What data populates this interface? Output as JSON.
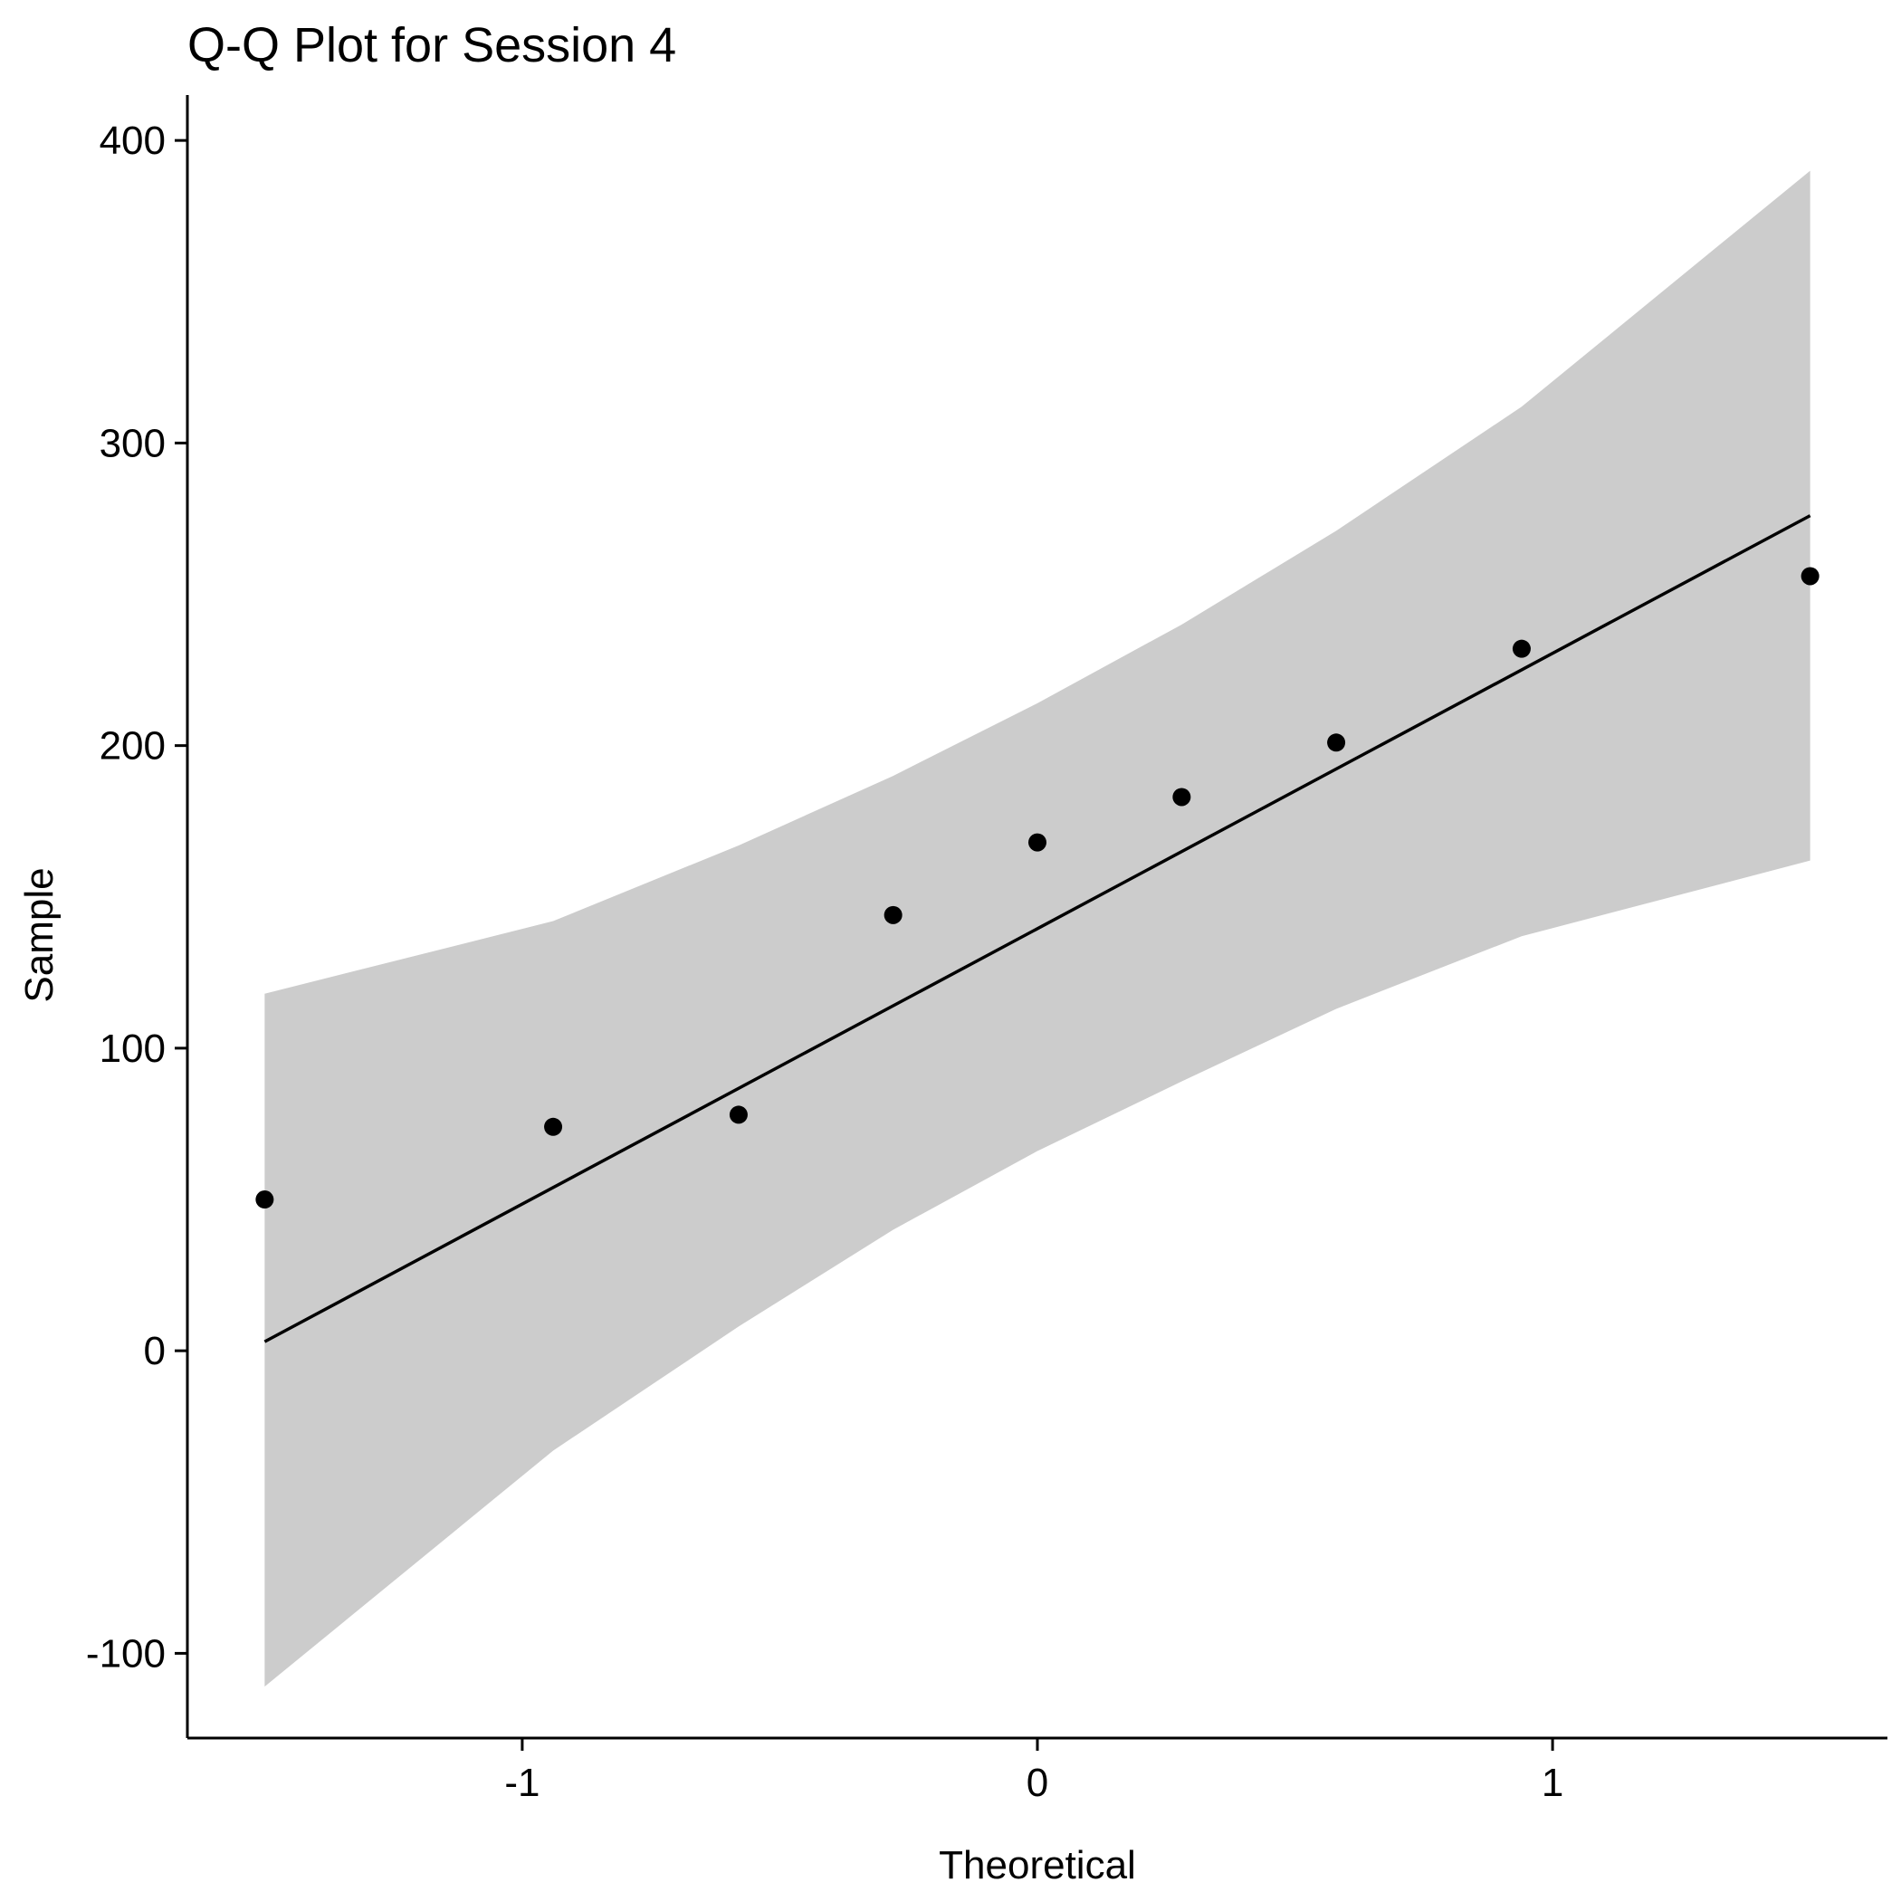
{
  "chart_data": {
    "type": "scatter",
    "title": "Q-Q Plot for Session  4",
    "xlabel": "Theoretical",
    "ylabel": "Sample",
    "xlim": [
      -1.65,
      1.65
    ],
    "ylim": [
      -128,
      415
    ],
    "x_ticks": [
      -1,
      0,
      1
    ],
    "x_tick_labels": [
      "-1",
      "0",
      "1"
    ],
    "y_ticks": [
      -100,
      0,
      100,
      200,
      300,
      400
    ],
    "y_tick_labels": [
      "-100",
      "0",
      "100",
      "200",
      "300",
      "400"
    ],
    "grid": false,
    "legend": "none",
    "points": {
      "x": [
        -1.5,
        -0.94,
        -0.58,
        -0.28,
        0.0,
        0.28,
        0.58,
        0.94,
        1.5
      ],
      "y": [
        50,
        74,
        78,
        144,
        168,
        183,
        201,
        232,
        256
      ]
    },
    "reference_line": {
      "x": [
        -1.5,
        1.5
      ],
      "y": [
        3,
        276
      ]
    },
    "confidence_band": {
      "x": [
        -1.5,
        -0.94,
        -0.58,
        -0.28,
        0.0,
        0.28,
        0.58,
        0.94,
        1.5
      ],
      "upper": [
        118,
        142,
        167,
        190,
        214,
        240,
        271,
        312,
        390
      ],
      "lower": [
        -111,
        -33,
        8,
        40,
        66,
        89,
        113,
        137,
        162
      ]
    },
    "colors": {
      "points": "#000000",
      "line": "#000000",
      "band": "#cccccc",
      "axes": "#000000"
    }
  }
}
